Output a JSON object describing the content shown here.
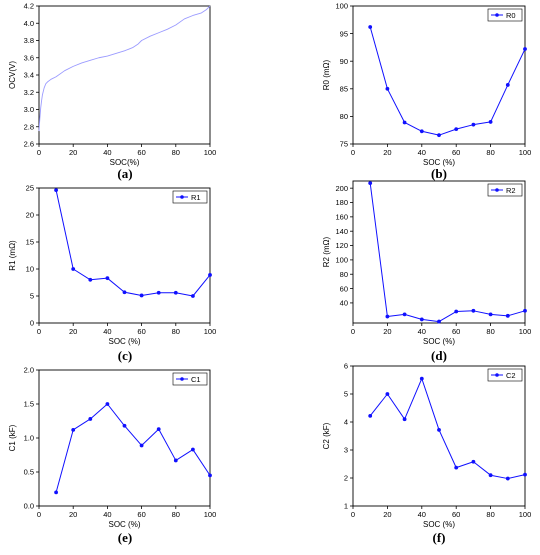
{
  "chart_data": [
    {
      "panel": "(a)",
      "type": "line",
      "xlabel": "SOC(%)",
      "ylabel": "OCV(V)",
      "xlim": [
        0,
        100
      ],
      "ylim": [
        2.6,
        4.2
      ],
      "xticks": [
        0,
        20,
        40,
        60,
        80,
        100
      ],
      "yticks": [
        2.6,
        2.8,
        3.0,
        3.2,
        3.4,
        3.6,
        3.8,
        4.0,
        4.2
      ],
      "ytick_labels": [
        "2.6",
        "2.8",
        "3.0",
        "3.2",
        "3.4",
        "3.6",
        "3.8",
        "4.0",
        "4.2"
      ],
      "color": "#9b9bff",
      "markers": false,
      "legend": null,
      "series": [
        {
          "x": [
            0,
            0.5,
            1,
            1.5,
            2,
            3,
            4,
            5,
            7,
            10,
            15,
            20,
            25,
            30,
            35,
            40,
            45,
            50,
            55,
            58,
            60,
            65,
            70,
            75,
            80,
            85,
            90,
            95,
            98,
            100
          ],
          "values": [
            2.75,
            2.9,
            3.02,
            3.1,
            3.17,
            3.25,
            3.3,
            3.32,
            3.35,
            3.38,
            3.45,
            3.5,
            3.54,
            3.57,
            3.6,
            3.62,
            3.65,
            3.68,
            3.72,
            3.76,
            3.8,
            3.85,
            3.89,
            3.93,
            3.98,
            4.05,
            4.09,
            4.12,
            4.16,
            4.2
          ]
        }
      ]
    },
    {
      "panel": "(b)",
      "type": "line",
      "xlabel": "SOC (%)",
      "ylabel": "R0 (mΩ)",
      "xlim": [
        0,
        100
      ],
      "ylim": [
        75,
        100
      ],
      "xticks": [
        0,
        20,
        40,
        60,
        80,
        100
      ],
      "yticks": [
        75,
        80,
        85,
        90,
        95,
        100
      ],
      "ytick_labels": [
        "75",
        "80",
        "85",
        "90",
        "95",
        "100"
      ],
      "color": "#1010ff",
      "markers": true,
      "legend": "top-right",
      "series": [
        {
          "name": "R0",
          "x": [
            10,
            20,
            30,
            40,
            50,
            60,
            70,
            80,
            90,
            100
          ],
          "values": [
            96.2,
            85.0,
            78.9,
            77.3,
            76.6,
            77.7,
            78.5,
            79.0,
            85.7,
            92.2
          ]
        }
      ]
    },
    {
      "panel": "(c)",
      "type": "line",
      "xlabel": "SOC (%)",
      "ylabel": "R1 (mΩ)",
      "xlim": [
        0,
        100
      ],
      "ylim": [
        0,
        25
      ],
      "xticks": [
        0,
        20,
        40,
        60,
        80,
        100
      ],
      "yticks": [
        0,
        5,
        10,
        15,
        20,
        25
      ],
      "ytick_labels": [
        "0",
        "5",
        "10",
        "15",
        "20",
        "25"
      ],
      "color": "#1010ff",
      "markers": true,
      "legend": "top-right",
      "series": [
        {
          "name": "R1",
          "x": [
            10,
            20,
            30,
            40,
            50,
            60,
            70,
            80,
            90,
            100
          ],
          "values": [
            24.6,
            10.0,
            8.0,
            8.3,
            5.7,
            5.1,
            5.6,
            5.6,
            5.0,
            8.9
          ]
        }
      ]
    },
    {
      "panel": "(d)",
      "type": "line",
      "xlabel": "SOC (%)",
      "ylabel": "R2 (mΩ)",
      "xlim": [
        0,
        100
      ],
      "ylim": [
        12,
        210
      ],
      "xticks": [
        0,
        20,
        40,
        60,
        80,
        100
      ],
      "yticks": [
        40,
        60,
        80,
        100,
        120,
        140,
        160,
        180,
        200
      ],
      "ytick_labels": [
        "40",
        "60",
        "80",
        "100",
        "120",
        "140",
        "160",
        "180",
        "200"
      ],
      "color": "#1010ff",
      "markers": true,
      "legend": "top-right",
      "series": [
        {
          "name": "R2",
          "x": [
            10,
            20,
            30,
            40,
            50,
            60,
            70,
            80,
            90,
            100
          ],
          "values": [
            207,
            21,
            24,
            17,
            14,
            28,
            29,
            24,
            22,
            29
          ]
        }
      ]
    },
    {
      "panel": "(e)",
      "type": "line",
      "xlabel": "SOC (%)",
      "ylabel": "C1 (kF)",
      "xlim": [
        0,
        100
      ],
      "ylim": [
        0,
        2.0
      ],
      "xticks": [
        0,
        20,
        40,
        60,
        80,
        100
      ],
      "yticks": [
        0,
        0.5,
        1.0,
        1.5,
        2.0
      ],
      "ytick_labels": [
        "0.0",
        "0.5",
        "1.0",
        "1.5",
        "2.0"
      ],
      "color": "#1010ff",
      "markers": true,
      "legend": "top-right",
      "series": [
        {
          "name": "C1",
          "x": [
            10,
            20,
            30,
            40,
            50,
            60,
            70,
            80,
            90,
            100
          ],
          "values": [
            0.2,
            1.12,
            1.28,
            1.5,
            1.18,
            0.89,
            1.13,
            0.67,
            0.83,
            0.45
          ]
        }
      ]
    },
    {
      "panel": "(f)",
      "type": "line",
      "xlabel": "SOC (%)",
      "ylabel": "C2 (kF)",
      "xlim": [
        0,
        100
      ],
      "ylim": [
        1,
        6
      ],
      "xticks": [
        0,
        20,
        40,
        60,
        80,
        100
      ],
      "yticks": [
        1,
        2,
        3,
        4,
        5,
        6
      ],
      "ytick_labels": [
        "1",
        "2",
        "3",
        "4",
        "5",
        "6"
      ],
      "color": "#1010ff",
      "markers": true,
      "legend": "top-right",
      "series": [
        {
          "name": "C2",
          "x": [
            10,
            20,
            30,
            40,
            50,
            60,
            70,
            80,
            90,
            100
          ],
          "values": [
            4.22,
            5.0,
            4.1,
            5.55,
            3.72,
            2.37,
            2.58,
            2.1,
            1.98,
            2.12
          ]
        }
      ]
    }
  ]
}
